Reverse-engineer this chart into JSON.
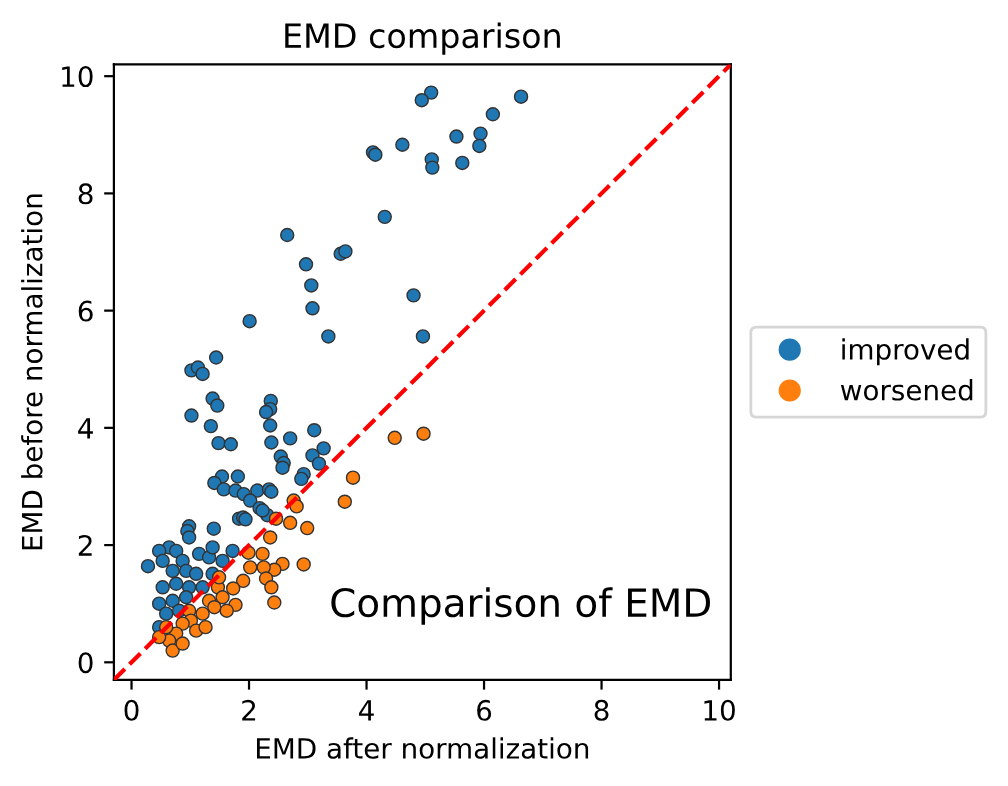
{
  "chart_data": {
    "type": "scatter",
    "title": "EMD comparison",
    "xlabel": "EMD after normalization",
    "ylabel": "EMD before normalization",
    "xlim": [
      -0.3,
      10.2
    ],
    "ylim": [
      -0.3,
      10.2
    ],
    "xticks": [
      0,
      2,
      4,
      6,
      8,
      10
    ],
    "yticks": [
      0,
      2,
      4,
      6,
      8,
      10
    ],
    "grid": false,
    "legend": "right",
    "annotations": [
      "Comparison of EMD"
    ],
    "series": [
      {
        "name": "improved",
        "marker": "circle",
        "color": "#1f77b4",
        "x": [
          6.63,
          5.1,
          4.94,
          6.15,
          5.94,
          5.53,
          5.92,
          4.61,
          4.11,
          4.15,
          5.11,
          5.12,
          5.63,
          4.31,
          2.65,
          2.97,
          3.56,
          3.64,
          3.06,
          3.08,
          4.8,
          2.01,
          3.35,
          4.96,
          1.44,
          1.02,
          1.13,
          1.21,
          1.02,
          1.38,
          1.46,
          1.35,
          2.37,
          2.36,
          2.29,
          2.36,
          1.48,
          1.69,
          2.38,
          2.7,
          3.11,
          3.27,
          3.08,
          3.19,
          2.54,
          2.59,
          2.57,
          2.93,
          2.89,
          1.54,
          1.81,
          1.41,
          1.57,
          1.77,
          1.91,
          2.14,
          2.34,
          2.38,
          2.02,
          2.18,
          2.31,
          1.83,
          1.9,
          0.98,
          1.4,
          0.95,
          1.94,
          2.23,
          0.98,
          0.64,
          0.47,
          0.76,
          0.28,
          0.53,
          0.87,
          1.15,
          1.32,
          1.38,
          1.55,
          1.72,
          0.7,
          0.93,
          1.1,
          1.38,
          0.53,
          0.76,
          0.98,
          1.21,
          0.47,
          0.7,
          0.93,
          0.59,
          0.81,
          0.47
        ],
        "values": [
          9.65,
          9.72,
          9.59,
          9.35,
          9.02,
          8.97,
          8.81,
          8.83,
          8.7,
          8.66,
          8.58,
          8.44,
          8.52,
          7.6,
          7.29,
          6.79,
          6.97,
          7.01,
          6.43,
          6.04,
          6.26,
          5.82,
          5.56,
          5.56,
          5.2,
          4.98,
          5.03,
          4.92,
          4.21,
          4.5,
          4.38,
          4.03,
          4.46,
          4.32,
          4.27,
          4.04,
          3.74,
          3.72,
          3.75,
          3.82,
          3.96,
          3.65,
          3.53,
          3.39,
          3.51,
          3.4,
          3.32,
          3.21,
          3.13,
          3.17,
          3.17,
          3.06,
          2.95,
          2.93,
          2.87,
          2.93,
          2.95,
          2.91,
          2.76,
          2.63,
          2.51,
          2.45,
          2.47,
          2.32,
          2.28,
          2.24,
          2.44,
          2.59,
          2.13,
          1.96,
          1.9,
          1.9,
          1.64,
          1.73,
          1.73,
          1.85,
          1.79,
          1.96,
          1.73,
          1.9,
          1.56,
          1.56,
          1.51,
          1.51,
          1.28,
          1.34,
          1.28,
          1.28,
          1.0,
          1.05,
          1.11,
          0.83,
          0.88,
          0.6
        ]
      },
      {
        "name": "worsened",
        "marker": "circle",
        "color": "#ff7f0e",
        "x": [
          3.77,
          3.63,
          4.48,
          4.97,
          2.76,
          2.81,
          2.46,
          2.7,
          2.99,
          2.36,
          2.93,
          2.57,
          2.43,
          2.23,
          1.99,
          2.25,
          2.02,
          1.9,
          2.29,
          2.38,
          2.43,
          1.73,
          1.77,
          1.47,
          1.55,
          1.32,
          1.41,
          1.62,
          1.21,
          0.98,
          1.01,
          0.87,
          1.1,
          0.76,
          0.64,
          0.7,
          0.87,
          0.47,
          0.59,
          1.26,
          1.49
        ],
        "values": [
          3.15,
          2.74,
          3.83,
          3.9,
          2.76,
          2.66,
          2.45,
          2.38,
          2.29,
          2.13,
          1.67,
          1.68,
          1.58,
          1.85,
          1.87,
          1.62,
          1.62,
          1.39,
          1.43,
          1.28,
          1.02,
          1.26,
          0.98,
          1.28,
          1.11,
          1.05,
          0.94,
          0.88,
          0.83,
          0.88,
          0.71,
          0.66,
          0.54,
          0.49,
          0.37,
          0.2,
          0.32,
          0.43,
          0.6,
          0.6,
          1.45
        ]
      },
      {
        "type": "line",
        "marker": "none",
        "color": "#ff0000",
        "line_style": "dashed",
        "x": [
          -0.3,
          10.2
        ],
        "values": [
          -0.3,
          10.2
        ]
      }
    ]
  }
}
